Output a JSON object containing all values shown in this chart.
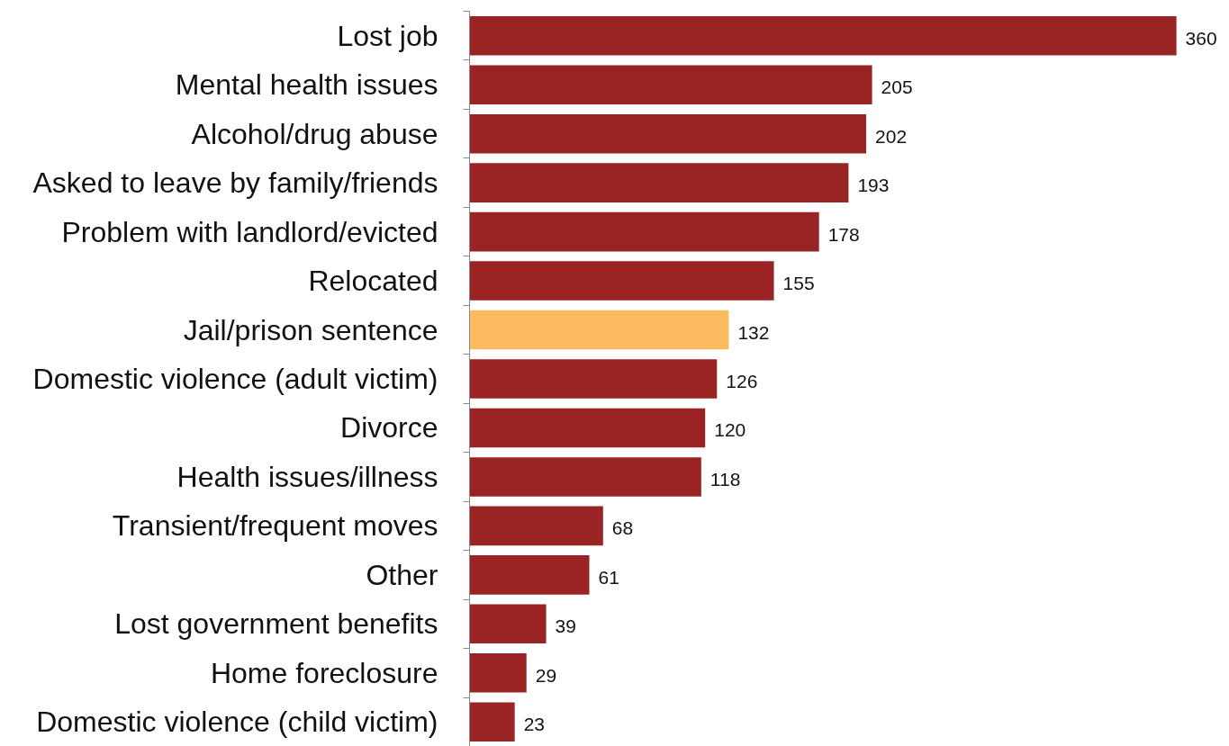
{
  "chart_data": {
    "type": "bar",
    "orientation": "horizontal",
    "categories": [
      "Lost job",
      "Mental health issues",
      "Alcohol/drug abuse",
      "Asked to leave by family/friends",
      "Problem with landlord/evicted",
      "Relocated",
      "Jail/prison sentence",
      "Domestic violence (adult victim)",
      "Divorce",
      "Health issues/illness",
      "Transient/frequent moves",
      "Other",
      "Lost government benefits",
      "Home foreclosure",
      "Domestic violence (child victim)"
    ],
    "values": [
      360,
      205,
      202,
      193,
      178,
      155,
      132,
      126,
      120,
      118,
      68,
      61,
      39,
      29,
      23
    ],
    "colors": [
      "#9a2424",
      "#9a2424",
      "#9a2424",
      "#9a2424",
      "#9a2424",
      "#9a2424",
      "#fcbb5f",
      "#9a2424",
      "#9a2424",
      "#9a2424",
      "#9a2424",
      "#9a2424",
      "#9a2424",
      "#9a2424",
      "#9a2424"
    ],
    "data_labels": true,
    "grid": false
  }
}
